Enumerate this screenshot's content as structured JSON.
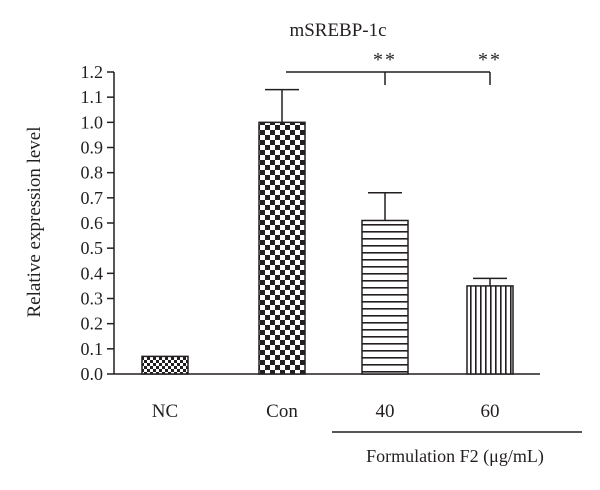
{
  "chart_data": {
    "type": "bar",
    "title": "mSREBP-1c",
    "ylabel": "Relative expression level",
    "xlabel": "",
    "group_label": "Formulation F2 (μg/mL)",
    "ylim": [
      0,
      1.2
    ],
    "yticks": [
      "0.0",
      "0.1",
      "0.2",
      "0.3",
      "0.4",
      "0.5",
      "0.6",
      "0.7",
      "0.8",
      "0.9",
      "1.0",
      "1.1",
      "1.2"
    ],
    "categories": [
      "NC",
      "Con",
      "40",
      "60"
    ],
    "values": [
      0.07,
      1.0,
      0.61,
      0.35
    ],
    "errors": [
      0.005,
      0.13,
      0.11,
      0.03
    ],
    "patterns": [
      "small-checker",
      "large-checker",
      "horizontal-lines",
      "vertical-lines"
    ],
    "significance": [
      {
        "from": "Con",
        "to": "40",
        "label": "**"
      },
      {
        "from": "Con",
        "to": "60",
        "label": "**"
      }
    ],
    "grid": false,
    "colors": {
      "ink": "#231f20",
      "background": "#ffffff"
    }
  }
}
